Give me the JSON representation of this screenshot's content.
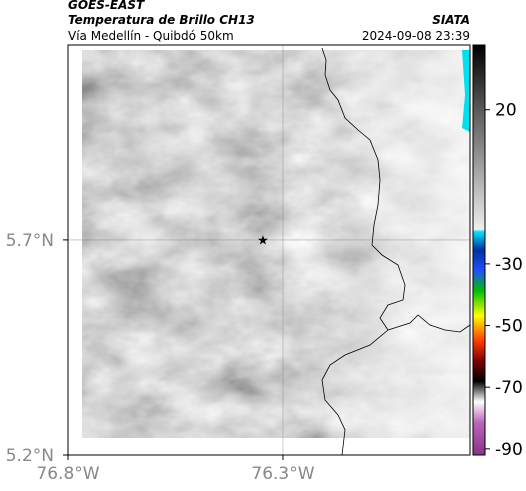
{
  "header": {
    "satellite": "GOES-EAST",
    "product": "Temperatura de Brillo CH13",
    "region": "Vía Medellín - Quibdó 50km",
    "source": "SIATA",
    "datetime": "2024-09-08 23:39"
  },
  "map": {
    "xlim": [
      -76.8,
      -75.865
    ],
    "ylim": [
      5.2,
      6.153
    ],
    "xticks": [
      {
        "value": -76.8,
        "label": "76.8°W"
      },
      {
        "value": -76.3,
        "label": "76.3°W"
      }
    ],
    "yticks": [
      {
        "value": 5.2,
        "label": "5.2°N"
      },
      {
        "value": 5.7,
        "label": "5.7°N"
      }
    ],
    "grid": true
  },
  "colorbar": {
    "lim": [
      41,
      -92
    ],
    "ticks": [
      20,
      -30,
      -50,
      -70,
      -90
    ]
  }
}
